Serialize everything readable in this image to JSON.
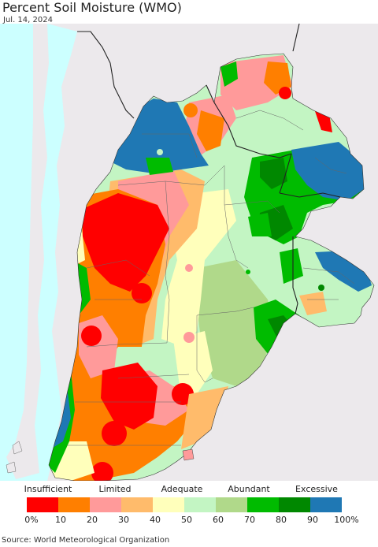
{
  "header": {
    "title": "Percent Soil Moisture (WMO)",
    "date": "Jul. 14, 2024"
  },
  "legend": {
    "categories": [
      "Insufficient",
      "Limited",
      "Adequate",
      "Abundant",
      "Excessive"
    ],
    "ticks": [
      "0%",
      "10",
      "20",
      "30",
      "40",
      "50",
      "60",
      "70",
      "80",
      "90",
      "100%"
    ],
    "colors": [
      "#ff0000",
      "#ff7f00",
      "#ff9a9a",
      "#ffbb6b",
      "#ffffbb",
      "#c3f5c3",
      "#b0d98a",
      "#00bb00",
      "#008800",
      "#1f78b4"
    ]
  },
  "map_colors": {
    "ocean": "#ccffff",
    "land_outside": "#ece9ec",
    "border": "#555555",
    "insufficient": "#ff0000",
    "orange": "#ff7f00",
    "pink": "#ff9a9a",
    "light_orange": "#ffbb6b",
    "yellow": "#ffffbb",
    "light_green": "#c3f5c3",
    "olive": "#b0d98a",
    "green": "#00bb00",
    "dark_green": "#008800",
    "blue": "#1f78b4"
  },
  "footer": {
    "source": "Source: World Meteorological Organization"
  }
}
